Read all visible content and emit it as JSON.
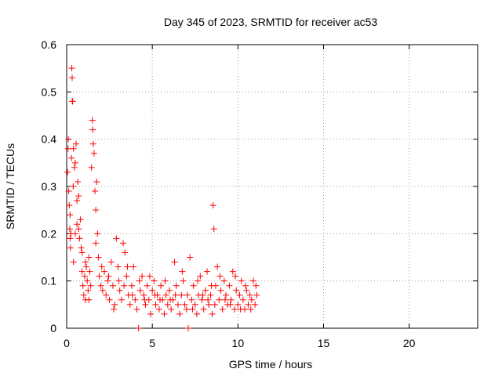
{
  "chart_data": {
    "type": "scatter",
    "title": "Day 345 of 2023, SRMTID for receiver ac53",
    "xlabel": "GPS time / hours",
    "ylabel": "SRMTID / TECUs",
    "xlim": [
      0,
      24
    ],
    "ylim": [
      0,
      0.6
    ],
    "xticks": [
      0,
      5,
      10,
      15,
      20
    ],
    "yticks": [
      0,
      0.1,
      0.2,
      0.3,
      0.4,
      0.5,
      0.6
    ],
    "ytick_labels": [
      "0",
      "0.1",
      "0.2",
      "0.3",
      "0.4",
      "0.5",
      "0.6"
    ],
    "grid": true,
    "marker": "+",
    "color": "#ff0000",
    "series": [
      {
        "name": "SRMTID",
        "points": [
          [
            0.05,
            0.33
          ],
          [
            0.08,
            0.38
          ],
          [
            0.1,
            0.4
          ],
          [
            0.12,
            0.29
          ],
          [
            0.15,
            0.26
          ],
          [
            0.18,
            0.21
          ],
          [
            0.2,
            0.24
          ],
          [
            0.22,
            0.17
          ],
          [
            0.25,
            0.2
          ],
          [
            0.28,
            0.36
          ],
          [
            0.3,
            0.55
          ],
          [
            0.32,
            0.53
          ],
          [
            0.33,
            0.48
          ],
          [
            0.35,
            0.48
          ],
          [
            0.38,
            0.3
          ],
          [
            0.4,
            0.38
          ],
          [
            0.45,
            0.34
          ],
          [
            0.5,
            0.35
          ],
          [
            0.55,
            0.39
          ],
          [
            0.6,
            0.27
          ],
          [
            0.65,
            0.31
          ],
          [
            0.7,
            0.21
          ],
          [
            0.75,
            0.19
          ],
          [
            0.8,
            0.23
          ],
          [
            0.85,
            0.17
          ],
          [
            0.9,
            0.12
          ],
          [
            0.95,
            0.09
          ],
          [
            1.0,
            0.07
          ],
          [
            1.05,
            0.11
          ],
          [
            1.1,
            0.06
          ],
          [
            1.15,
            0.13
          ],
          [
            1.2,
            0.1
          ],
          [
            1.25,
            0.08
          ],
          [
            1.3,
            0.15
          ],
          [
            1.35,
            0.12
          ],
          [
            1.4,
            0.09
          ],
          [
            1.45,
            0.34
          ],
          [
            1.5,
            0.44
          ],
          [
            1.52,
            0.42
          ],
          [
            1.55,
            0.39
          ],
          [
            1.6,
            0.37
          ],
          [
            1.65,
            0.29
          ],
          [
            1.7,
            0.25
          ],
          [
            1.75,
            0.31
          ],
          [
            1.8,
            0.2
          ],
          [
            1.85,
            0.15
          ],
          [
            1.9,
            0.11
          ],
          [
            2.0,
            0.09
          ],
          [
            2.1,
            0.08
          ],
          [
            2.2,
            0.12
          ],
          [
            2.3,
            0.07
          ],
          [
            2.4,
            0.1
          ],
          [
            2.5,
            0.06
          ],
          [
            2.6,
            0.14
          ],
          [
            2.7,
            0.09
          ],
          [
            2.8,
            0.05
          ],
          [
            2.9,
            0.19
          ],
          [
            3.0,
            0.13
          ],
          [
            3.1,
            0.08
          ],
          [
            3.2,
            0.06
          ],
          [
            3.3,
            0.18
          ],
          [
            3.4,
            0.16
          ],
          [
            3.5,
            0.11
          ],
          [
            3.6,
            0.07
          ],
          [
            3.7,
            0.05
          ],
          [
            3.8,
            0.09
          ],
          [
            3.9,
            0.13
          ],
          [
            4.0,
            0.06
          ],
          [
            4.1,
            0.04
          ],
          [
            4.2,
            0.0
          ],
          [
            4.3,
            0.08
          ],
          [
            4.4,
            0.11
          ],
          [
            4.5,
            0.07
          ],
          [
            4.6,
            0.05
          ],
          [
            4.7,
            0.09
          ],
          [
            4.8,
            0.06
          ],
          [
            4.9,
            0.03
          ],
          [
            5.0,
            0.08
          ],
          [
            5.1,
            0.1
          ],
          [
            5.2,
            0.05
          ],
          [
            5.3,
            0.07
          ],
          [
            5.4,
            0.04
          ],
          [
            5.5,
            0.09
          ],
          [
            5.6,
            0.06
          ],
          [
            5.7,
            0.03
          ],
          [
            5.8,
            0.07
          ],
          [
            5.9,
            0.05
          ],
          [
            6.0,
            0.08
          ],
          [
            6.1,
            0.04
          ],
          [
            6.2,
            0.06
          ],
          [
            6.3,
            0.14
          ],
          [
            6.4,
            0.09
          ],
          [
            6.5,
            0.05
          ],
          [
            6.6,
            0.03
          ],
          [
            6.7,
            0.07
          ],
          [
            6.8,
            0.1
          ],
          [
            6.9,
            0.05
          ],
          [
            7.0,
            0.04
          ],
          [
            7.1,
            0.0
          ],
          [
            7.2,
            0.15
          ],
          [
            7.3,
            0.06
          ],
          [
            7.4,
            0.09
          ],
          [
            7.5,
            0.05
          ],
          [
            7.6,
            0.03
          ],
          [
            7.7,
            0.07
          ],
          [
            7.8,
            0.11
          ],
          [
            7.9,
            0.06
          ],
          [
            8.0,
            0.04
          ],
          [
            8.1,
            0.08
          ],
          [
            8.2,
            0.12
          ],
          [
            8.3,
            0.05
          ],
          [
            8.4,
            0.07
          ],
          [
            8.5,
            0.03
          ],
          [
            8.55,
            0.26
          ],
          [
            8.6,
            0.21
          ],
          [
            8.7,
            0.09
          ],
          [
            8.8,
            0.13
          ],
          [
            8.9,
            0.06
          ],
          [
            9.0,
            0.08
          ],
          [
            9.1,
            0.04
          ],
          [
            9.2,
            0.1
          ],
          [
            9.3,
            0.07
          ],
          [
            9.4,
            0.05
          ],
          [
            9.5,
            0.09
          ],
          [
            9.6,
            0.06
          ],
          [
            9.7,
            0.12
          ],
          [
            9.8,
            0.04
          ],
          [
            9.9,
            0.08
          ],
          [
            10.0,
            0.05
          ],
          [
            10.1,
            0.07
          ],
          [
            10.2,
            0.1
          ],
          [
            10.3,
            0.06
          ],
          [
            10.4,
            0.04
          ],
          [
            10.5,
            0.08
          ],
          [
            10.6,
            0.05
          ],
          [
            10.7,
            0.07
          ],
          [
            10.8,
            0.06
          ],
          [
            10.9,
            0.1
          ],
          [
            11.0,
            0.05
          ],
          [
            11.1,
            0.07
          ],
          [
            0.4,
            0.14
          ],
          [
            0.6,
            0.22
          ],
          [
            0.9,
            0.16
          ],
          [
            1.1,
            0.14
          ],
          [
            1.3,
            0.06
          ],
          [
            1.7,
            0.18
          ],
          [
            2.05,
            0.13
          ],
          [
            2.45,
            0.11
          ],
          [
            2.75,
            0.04
          ],
          [
            3.05,
            0.1
          ],
          [
            3.35,
            0.09
          ],
          [
            3.55,
            0.13
          ],
          [
            3.85,
            0.07
          ],
          [
            4.25,
            0.1
          ],
          [
            4.55,
            0.06
          ],
          [
            4.85,
            0.11
          ],
          [
            5.15,
            0.07
          ],
          [
            5.45,
            0.06
          ],
          [
            5.75,
            0.1
          ],
          [
            6.05,
            0.06
          ],
          [
            6.35,
            0.07
          ],
          [
            6.75,
            0.12
          ],
          [
            7.05,
            0.07
          ],
          [
            7.35,
            0.04
          ],
          [
            7.65,
            0.1
          ],
          [
            7.95,
            0.07
          ],
          [
            8.25,
            0.06
          ],
          [
            8.45,
            0.09
          ],
          [
            8.65,
            0.05
          ],
          [
            8.95,
            0.11
          ],
          [
            9.25,
            0.06
          ],
          [
            9.55,
            0.05
          ],
          [
            9.85,
            0.11
          ],
          [
            10.15,
            0.04
          ],
          [
            10.45,
            0.09
          ],
          [
            10.75,
            0.04
          ],
          [
            11.05,
            0.09
          ],
          [
            0.2,
            0.19
          ],
          [
            0.5,
            0.2
          ],
          [
            0.7,
            0.28
          ]
        ]
      }
    ]
  }
}
